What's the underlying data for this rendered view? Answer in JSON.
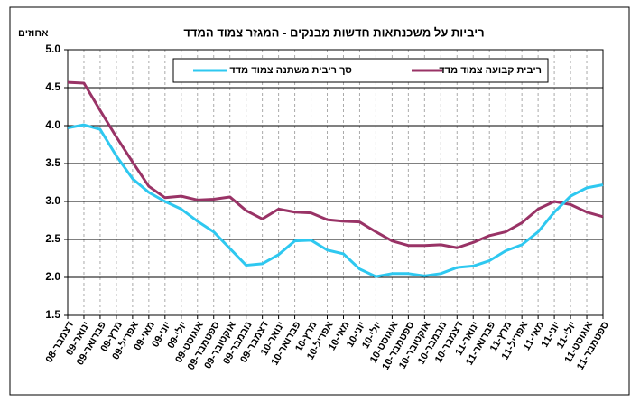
{
  "chart_data": {
    "type": "line",
    "title": "ריביות על משכנתאות חדשות מבנקים - המגזר צמוד המדד",
    "y_label": "אחוזים",
    "categories": [
      "דצמבר-08",
      "ינואר-09",
      "פברואר-09",
      "מרץ-09",
      "אפריל-09",
      "מאי-09",
      "יוני-09",
      "יולי-09",
      "אוגוסט-09",
      "ספטמבר-09",
      "אוקטובר-09",
      "נובמבר-09",
      "דצמבר-09",
      "ינואר-10",
      "פברואר-10",
      "מרץ-10",
      "אפריל-10",
      "מאי-10",
      "יוני-10",
      "יולי-10",
      "אוגוסט-10",
      "ספטמבר-10",
      "אוקטובר-10",
      "נובמבר-10",
      "דצמבר-10",
      "ינואר-11",
      "פברואר-11",
      "מרץ-11",
      "אפריל-11",
      "מאי-11",
      "יוני-11",
      "יולי-11",
      "אוגוסט-11",
      "ספטמבר-11"
    ],
    "series": [
      {
        "name": "ריבית קבועה צמוד מדד",
        "color": "#993366",
        "values": [
          4.57,
          4.56,
          4.2,
          3.85,
          3.52,
          3.2,
          3.05,
          3.07,
          3.02,
          3.03,
          3.06,
          2.88,
          2.77,
          2.9,
          2.86,
          2.85,
          2.76,
          2.74,
          2.73,
          2.6,
          2.48,
          2.42,
          2.42,
          2.43,
          2.39,
          2.46,
          2.55,
          2.6,
          2.72,
          2.9,
          3.0,
          2.96,
          2.86,
          2.8
        ]
      },
      {
        "name": "סך ריבית משתנה צמוד מדד",
        "color": "#2ec8f0",
        "values": [
          3.97,
          4.01,
          3.95,
          3.6,
          3.3,
          3.12,
          3.0,
          2.9,
          2.74,
          2.6,
          2.38,
          2.16,
          2.18,
          2.3,
          2.48,
          2.49,
          2.36,
          2.31,
          2.11,
          2.01,
          2.05,
          2.05,
          2.02,
          2.05,
          2.13,
          2.15,
          2.22,
          2.35,
          2.43,
          2.6,
          2.86,
          3.07,
          3.18,
          3.22
        ]
      }
    ],
    "ylim": [
      1.5,
      5.0
    ],
    "yticks": [
      1.5,
      {
        "value": 2,
        "label": "2.0"
      },
      2.5,
      {
        "value": 3,
        "label": "3.0"
      },
      3.5,
      {
        "value": 4,
        "label": "4.0"
      },
      4.5,
      {
        "value": 5,
        "label": "5.0"
      }
    ],
    "grid": true
  }
}
